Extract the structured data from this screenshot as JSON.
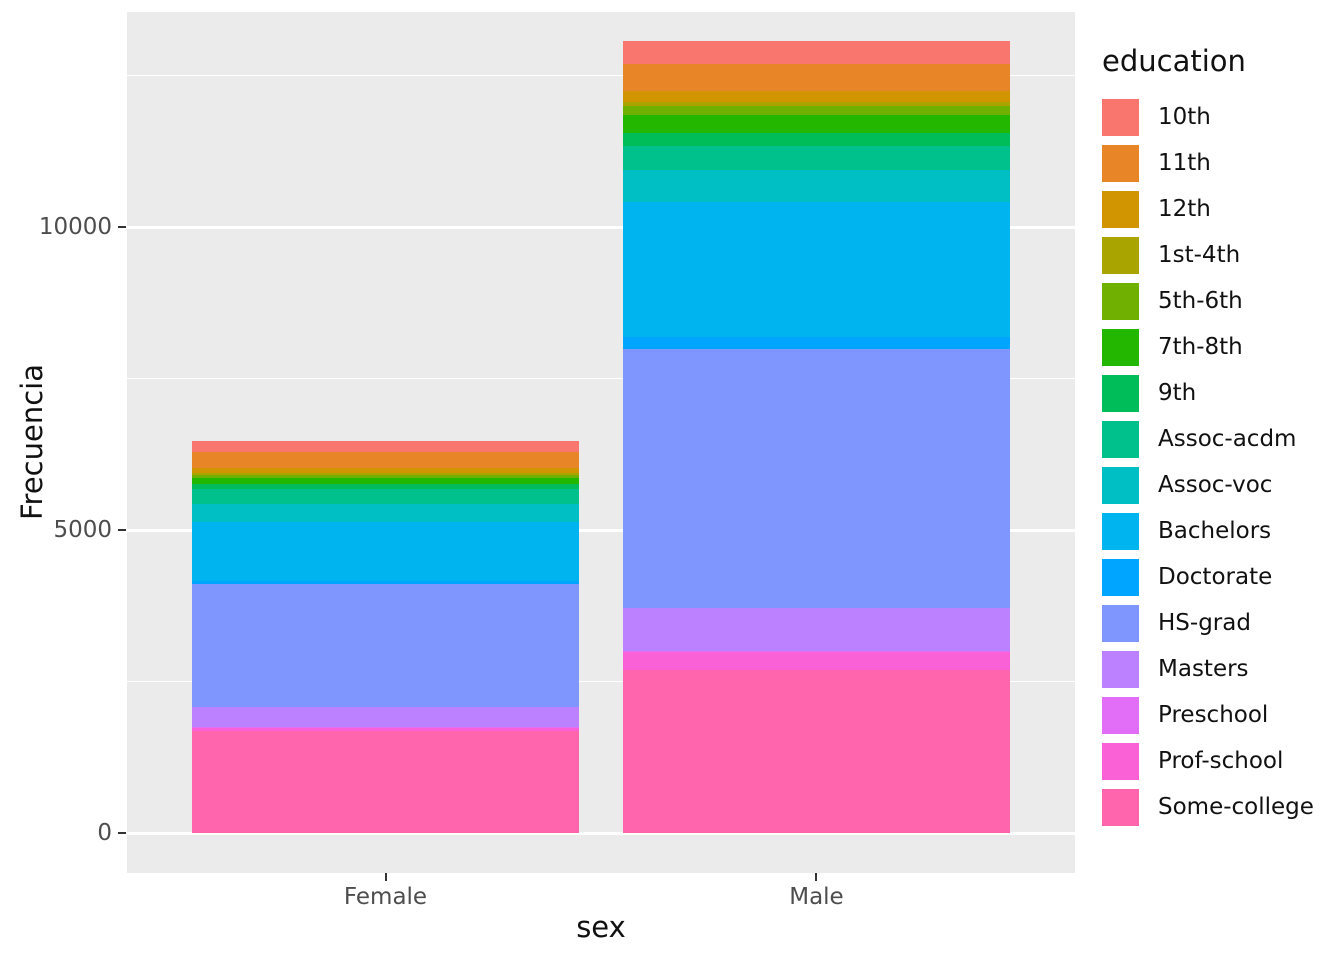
{
  "axes": {
    "x_label": "sex",
    "y_label": "Frecuencia",
    "y_ticks": [
      {
        "label": "0",
        "value": 0
      },
      {
        "label": "5000",
        "value": 5000
      },
      {
        "label": "10000",
        "value": 10000
      }
    ],
    "x_ticks": [
      "Female",
      "Male"
    ]
  },
  "legend": {
    "title": "education",
    "position": "right"
  },
  "chart_data": {
    "type": "bar",
    "stacked": true,
    "title": "",
    "xlabel": "sex",
    "ylabel": "Frecuencia",
    "categories": [
      "Female",
      "Male"
    ],
    "series": [
      {
        "name": "10th",
        "color": "#F8766D",
        "values": [
          177,
          383
        ]
      },
      {
        "name": "11th",
        "color": "#E88526",
        "values": [
          260,
          445
        ]
      },
      {
        "name": "12th",
        "color": "#D09500",
        "values": [
          86,
          173
        ]
      },
      {
        "name": "1st-4th",
        "color": "#A9A400",
        "values": [
          28,
          73
        ]
      },
      {
        "name": "5th-6th",
        "color": "#6FB000",
        "values": [
          50,
          149
        ]
      },
      {
        "name": "7th-8th",
        "color": "#24B700",
        "values": [
          96,
          292
        ]
      },
      {
        "name": "9th",
        "color": "#00BC59",
        "values": [
          86,
          222
        ]
      },
      {
        "name": "Assoc-acdm",
        "color": "#00C08B",
        "values": [
          253,
          388
        ]
      },
      {
        "name": "Assoc-voc",
        "color": "#00BFC4",
        "values": [
          300,
          529
        ]
      },
      {
        "name": "Bachelors",
        "color": "#00B4EF",
        "values": [
          971,
          2242
        ]
      },
      {
        "name": "Doctorate",
        "color": "#00A5FF",
        "values": [
          52,
          196
        ]
      },
      {
        "name": "HS-grad",
        "color": "#7F96FF",
        "values": [
          2034,
          4267
        ]
      },
      {
        "name": "Masters",
        "color": "#BC81FF",
        "values": [
          322,
          712
        ]
      },
      {
        "name": "Preschool",
        "color": "#E26EF7",
        "values": [
          10,
          21
        ]
      },
      {
        "name": "Prof-school",
        "color": "#FB61D7",
        "values": [
          55,
          290
        ]
      },
      {
        "name": "Some-college",
        "color": "#FF65AC",
        "values": [
          1684,
          2691
        ]
      }
    ],
    "stack_order": "bottom-to-top is reverse of legend order (Some-college at bottom, 10th on top)",
    "bar_totals": {
      "Female": 6464,
      "Male": 13073
    },
    "ylim": [
      -660,
      13550
    ],
    "y_major_gridlines": [
      0,
      5000,
      10000
    ],
    "y_minor_gridlines": [
      2500,
      7500,
      12500
    ],
    "panel_background": "#EBEBEB",
    "gridline_color": "#FFFFFF",
    "grid": true,
    "legend_position": "right"
  }
}
